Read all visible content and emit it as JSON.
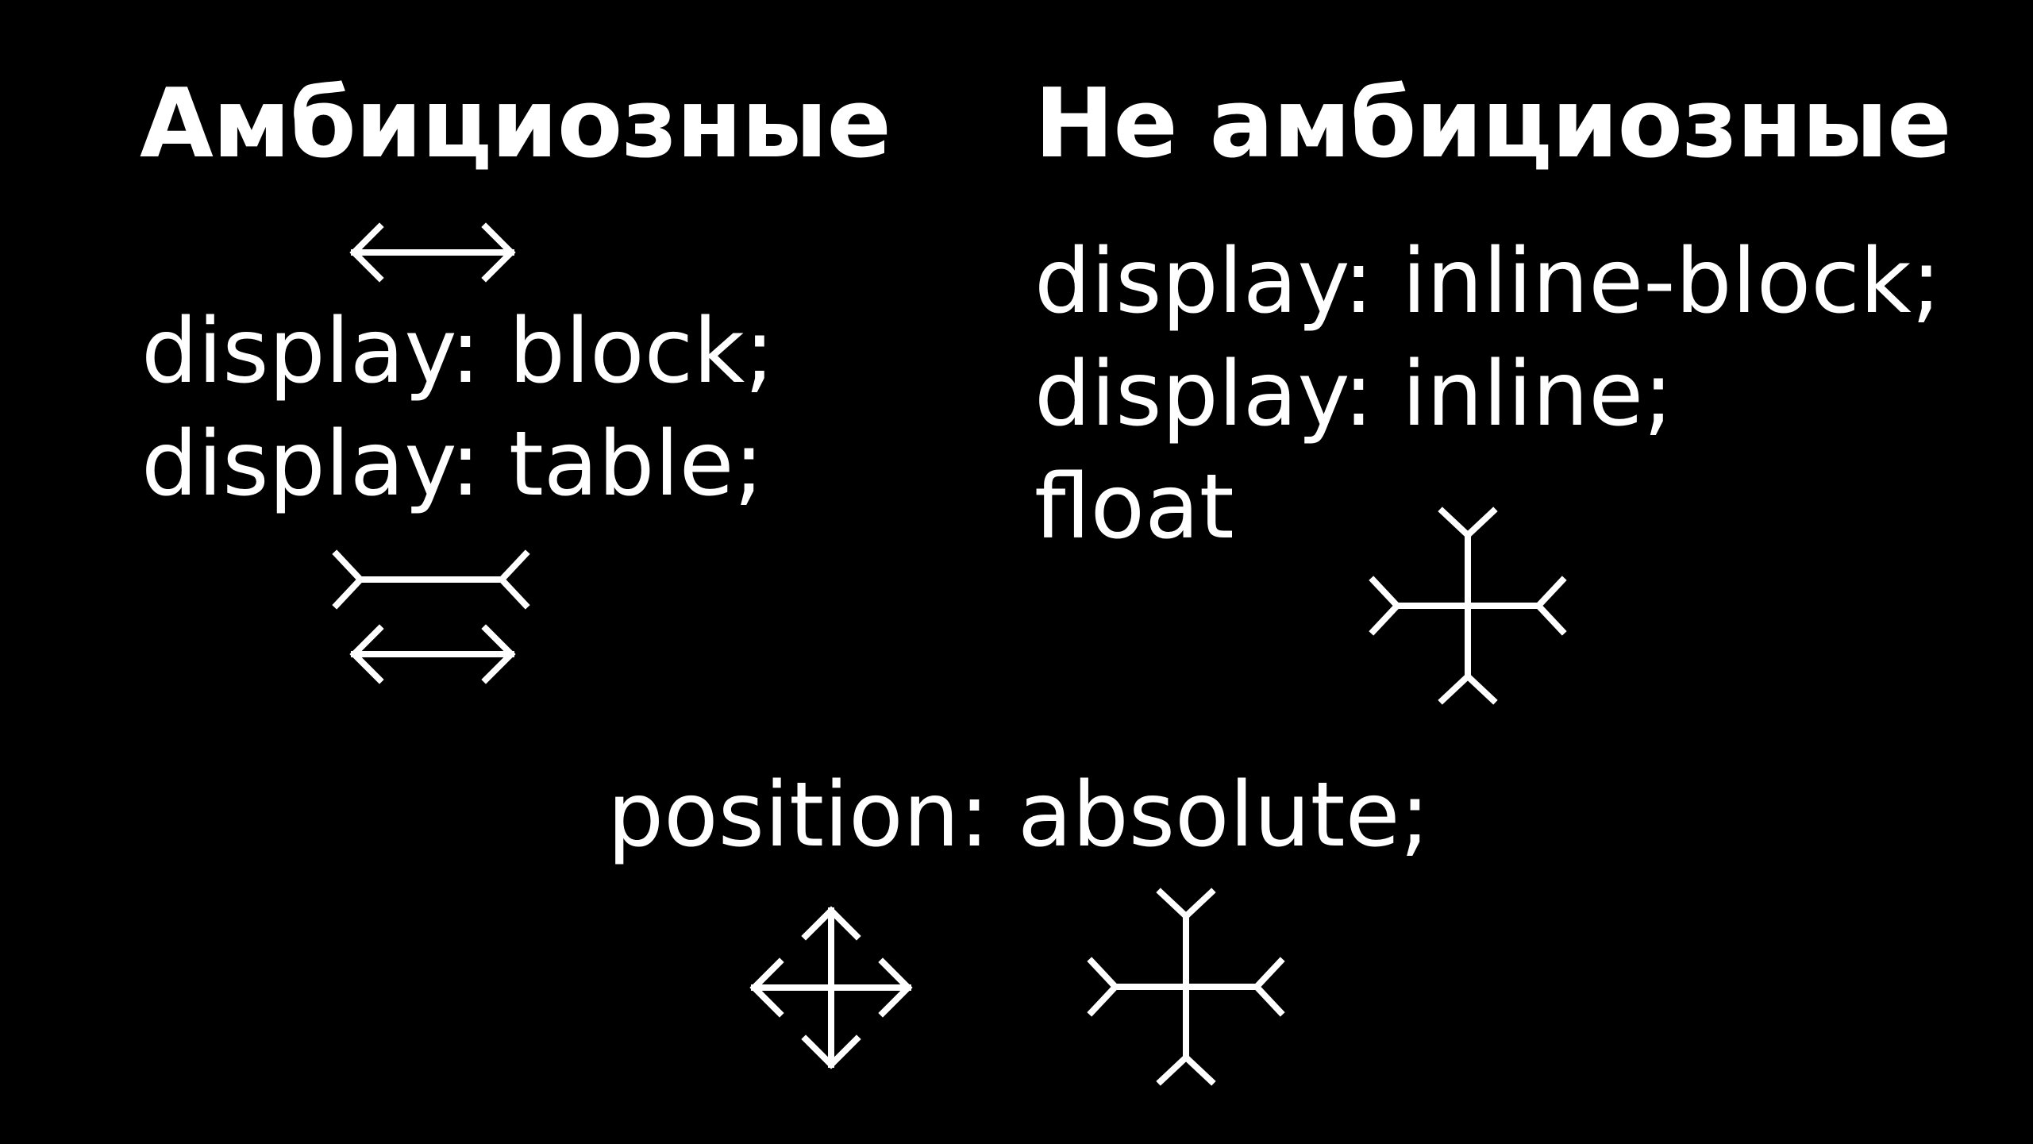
{
  "columns": {
    "ambitious": {
      "title": "Амбициозные",
      "lines": [
        "display: block;",
        "display: table;"
      ]
    },
    "not_ambitious": {
      "title": "Не амбициозные",
      "lines": [
        "display: inline-block;",
        "display: inline;",
        "float"
      ]
    }
  },
  "bottom": {
    "line": "position: absolute;"
  },
  "icons": {
    "ambitious_top": "double-arrow-horizontal-icon",
    "ambitious_mid": "shrink-horizontal-icon",
    "ambitious_bottom": "double-arrow-horizontal-icon",
    "not_ambitious": "shrink-cross-icon",
    "bottom_left": "expand-cross-icon",
    "bottom_right": "shrink-cross-icon"
  },
  "colors": {
    "background": "#000000",
    "foreground": "#ffffff"
  }
}
